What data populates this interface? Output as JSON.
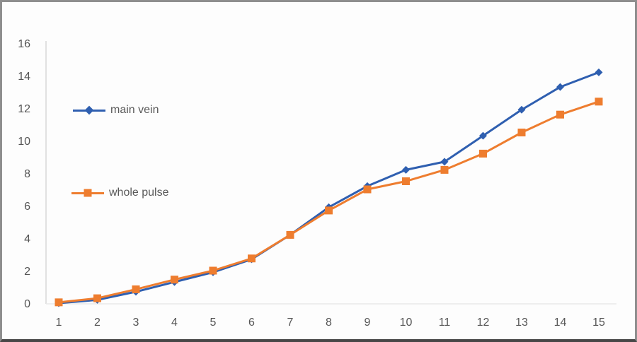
{
  "chart_data": {
    "type": "line",
    "title": "",
    "xlabel": "",
    "ylabel": "",
    "x": [
      1,
      2,
      3,
      4,
      5,
      6,
      7,
      8,
      9,
      10,
      11,
      12,
      13,
      14,
      15
    ],
    "x_tick_labels": [
      "1",
      "2",
      "3",
      "4",
      "5",
      "6",
      "7",
      "8",
      "9",
      "10",
      "11",
      "12",
      "13",
      "14",
      "15"
    ],
    "y_ticks": [
      0,
      2,
      4,
      6,
      8,
      10,
      12,
      14,
      16
    ],
    "ylim": [
      0,
      16
    ],
    "grid": "baseline-only",
    "legend_position": "inside-left",
    "series": [
      {
        "name": "main vein",
        "color": "#2f5fb0",
        "marker": "diamond",
        "values": [
          0,
          0.2,
          0.7,
          1.3,
          1.9,
          2.7,
          4.2,
          5.9,
          7.2,
          8.2,
          8.7,
          10.3,
          11.9,
          13.3,
          14.2
        ]
      },
      {
        "name": "whole pulse",
        "color": "#ee7d2f",
        "marker": "square",
        "values": [
          0.05,
          0.3,
          0.85,
          1.45,
          2.0,
          2.75,
          4.2,
          5.7,
          7.0,
          7.5,
          8.2,
          9.2,
          10.5,
          11.6,
          12.4
        ]
      }
    ],
    "axis_color": "#d8d8d8",
    "tick_text_color": "#555555"
  }
}
